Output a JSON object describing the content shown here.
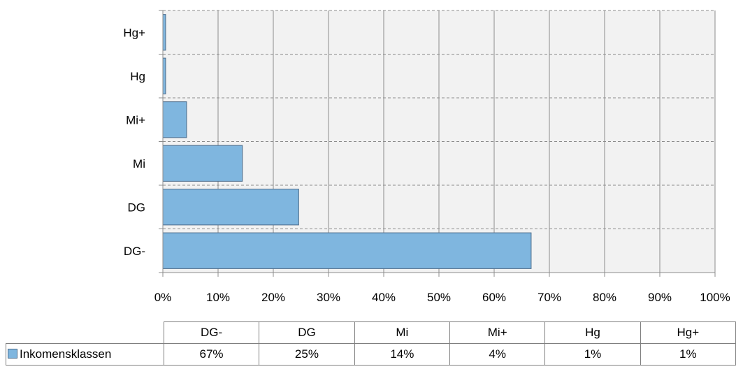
{
  "chart_data": {
    "type": "bar",
    "orientation": "horizontal",
    "categories": [
      "DG-",
      "DG",
      "Mi",
      "Mi+",
      "Hg",
      "Hg+"
    ],
    "series": [
      {
        "name": "Inkomensklassen",
        "values": [
          67,
          25,
          14,
          4,
          1,
          1
        ],
        "plotted_values": [
          66.7,
          24.6,
          14.4,
          4.3,
          0.5,
          0.5
        ]
      }
    ],
    "xlim": [
      0,
      100
    ],
    "x_ticks": [
      "0%",
      "10%",
      "20%",
      "30%",
      "40%",
      "50%",
      "60%",
      "70%",
      "80%",
      "90%",
      "100%"
    ],
    "value_labels": [
      "67%",
      "25%",
      "14%",
      "4%",
      "1%",
      "1%"
    ],
    "colors": {
      "bar_fill": "#7fb6df",
      "bar_stroke": "#4a6a89",
      "plot_bg": "#f2f2f2",
      "grid": "#8c8c8c"
    },
    "grid": true,
    "legend": "data-table"
  }
}
